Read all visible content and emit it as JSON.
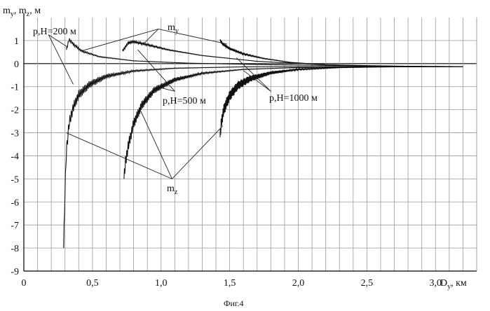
{
  "chart_data": {
    "type": "line",
    "title": "",
    "ylabel": "m_y, m_z, м",
    "xlabel": "D_y, км",
    "caption": "Фиг.4",
    "xlim": [
      0,
      3.3
    ],
    "ylim": [
      -9,
      2
    ],
    "x_ticks": [
      0,
      0.5,
      1.0,
      1.5,
      2.0,
      2.5,
      3.0
    ],
    "x_tick_labels": [
      "0",
      "0,5",
      "1,0",
      "1,5",
      "2,0",
      "2,5",
      "3,0"
    ],
    "y_ticks": [
      1,
      0,
      -1,
      -2,
      -3,
      -4,
      -5,
      -6,
      -7,
      -8,
      -9
    ],
    "y_tick_labels": [
      "1",
      "0",
      "-1",
      "-2",
      "-3",
      "-4",
      "-5",
      "-6",
      "-7",
      "-8",
      "-9"
    ],
    "series": [
      {
        "name": "m_y, p,H=200 м",
        "kind": "my",
        "x": [
          0.31,
          0.33,
          0.36,
          0.42,
          0.55,
          0.8,
          1.2,
          1.8,
          2.5,
          3.2
        ],
        "y": [
          0.6,
          1.05,
          0.85,
          0.55,
          0.3,
          0.12,
          0.02,
          -0.05,
          -0.1,
          -0.13
        ]
      },
      {
        "name": "m_y, p,H=500 м",
        "kind": "my",
        "x": [
          0.72,
          0.76,
          0.8,
          0.9,
          1.05,
          1.3,
          1.7,
          2.2,
          2.8,
          3.2
        ],
        "y": [
          0.55,
          0.9,
          0.95,
          0.82,
          0.6,
          0.35,
          0.1,
          -0.05,
          -0.12,
          -0.13
        ]
      },
      {
        "name": "m_y, p,H=1000 м",
        "kind": "my",
        "x": [
          1.43,
          1.45,
          1.5,
          1.6,
          1.75,
          1.95,
          2.2,
          2.6,
          3.0,
          3.2
        ],
        "y": [
          1.0,
          0.85,
          0.65,
          0.42,
          0.22,
          0.05,
          -0.05,
          -0.11,
          -0.13,
          -0.13
        ]
      },
      {
        "name": "m_z, p,H=200 м",
        "kind": "mz",
        "x": [
          0.29,
          0.3,
          0.31,
          0.33,
          0.36,
          0.4,
          0.48,
          0.6,
          0.8,
          1.1,
          1.6,
          2.2,
          3.2
        ],
        "y": [
          -8.0,
          -5.5,
          -3.8,
          -2.6,
          -1.9,
          -1.35,
          -0.9,
          -0.55,
          -0.32,
          -0.2,
          -0.14,
          -0.13,
          -0.13
        ]
      },
      {
        "name": "m_z, p,H=500 м",
        "kind": "mz",
        "x": [
          0.73,
          0.74,
          0.76,
          0.8,
          0.86,
          0.95,
          1.1,
          1.3,
          1.6,
          2.0,
          2.6,
          3.2
        ],
        "y": [
          -5.0,
          -4.3,
          -3.6,
          -2.6,
          -1.8,
          -1.15,
          -0.7,
          -0.42,
          -0.25,
          -0.17,
          -0.14,
          -0.13
        ]
      },
      {
        "name": "m_z, p,H=1000 м",
        "kind": "mz",
        "x": [
          1.43,
          1.44,
          1.46,
          1.5,
          1.56,
          1.65,
          1.8,
          2.0,
          2.3,
          2.7,
          3.2
        ],
        "y": [
          -3.2,
          -2.5,
          -1.95,
          -1.4,
          -0.95,
          -0.65,
          -0.4,
          -0.25,
          -0.17,
          -0.14,
          -0.13
        ]
      }
    ],
    "annotations": {
      "my": "m",
      "my_sub": "y",
      "mz": "m",
      "mz_sub": "z",
      "h200": "p,H=200 м",
      "h500": "p,H=500 м",
      "h1000": "p,H=1000 м"
    },
    "axis_text": {
      "y_m": "m",
      "y_sub1": "y",
      "y_mid": ", m",
      "y_sub2": "z",
      "y_unit": ", м",
      "x_d": "D",
      "x_sub": "y",
      "x_unit": ", км"
    }
  }
}
